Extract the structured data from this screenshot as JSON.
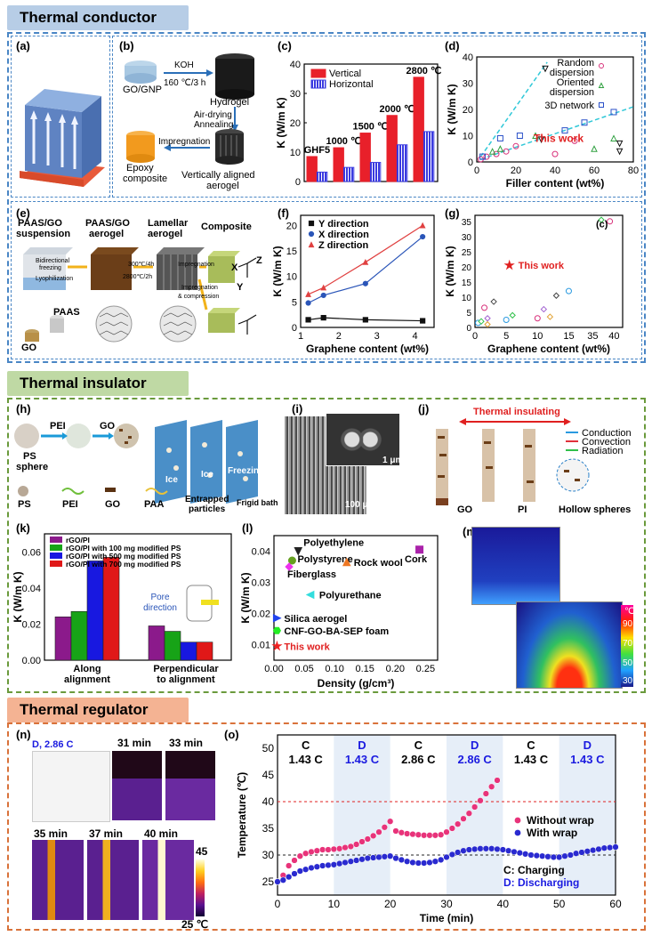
{
  "sections": {
    "conductor": {
      "title": "Thermal conductor",
      "color": "#b7cde6",
      "border": "#4a86c5"
    },
    "insulator": {
      "title": "Thermal insulator",
      "color": "#bfd9a4",
      "border": "#6a9a3c"
    },
    "regulator": {
      "title": "Thermal regulator",
      "color": "#f4b393",
      "border": "#d9723a"
    }
  },
  "panel_labels": {
    "a": "(a)",
    "b": "(b)",
    "c": "(c)",
    "d": "(d)",
    "e": "(e)",
    "f": "(f)",
    "g": "(g)",
    "h": "(h)",
    "i": "(i)",
    "j": "(j)",
    "k": "(k)",
    "l": "(l)",
    "m": "(m)",
    "n": "(n)",
    "o": "(o)"
  },
  "b": {
    "gognp": "GO/GNP",
    "koh": "KOH",
    "temp": "160 ℃/3 h",
    "hydrogel": "Hydrogel",
    "airdry": "Air-drying",
    "anneal": "Annealing",
    "impreg": "Impregnation",
    "epoxy1": "Epoxy",
    "epoxy2": "composite",
    "vert": "Vertically aligned",
    "aerogel": "aerogel"
  },
  "e": {
    "s1a": "PAAS/GO",
    "s1b": "suspension",
    "s2a": "PAAS/GO",
    "s2b": "aerogel",
    "s3a": "Lamellar",
    "s3b": "aerogel",
    "s4": "Composite",
    "bidir": "Bidirectional",
    "freezing": "freezing",
    "lyoph": "Lyophilization",
    "t1": "300℃/4h",
    "t2": "2800℃/2h",
    "imp": "Impregnation",
    "imp2": "Impregnation",
    "comp": "& compression",
    "go": "GO",
    "paas": "PAAS",
    "x": "X",
    "y": "Y",
    "z": "Z"
  },
  "h": {
    "peil": "PEI",
    "gol": "GO",
    "ps": "PS",
    "sphere": "sphere",
    "leg_ps": "PS",
    "leg_pei": "PEI",
    "leg_go": "GO",
    "leg_paa": "PAA",
    "ice1": "Ice",
    "ice2": "Ice",
    "freezing": "Freezing",
    "frigid": "Frigid bath",
    "entrapped1": "Entrapped",
    "entrapped2": "particles"
  },
  "i": {
    "scale1": "1 μm",
    "scale2": "100 μm"
  },
  "j": {
    "title": "Thermal insulating",
    "cond": "Conduction",
    "conv": "Convection",
    "rad": "Radiation",
    "go": "GO",
    "pi": "PI",
    "hollow": "Hollow spheres"
  },
  "m": {
    "unit": "℃",
    "ticks": [
      "90",
      "70",
      "50",
      "30"
    ]
  },
  "n": {
    "dlabel": "D, 2.86 C",
    "t31": "31 min",
    "t33": "33 min",
    "t35": "35 min",
    "t37": "37 min",
    "t40": "40 min",
    "cmax": "45",
    "cmin": "25 ℃"
  },
  "chart_data": [
    {
      "id": "c",
      "type": "bar",
      "categories": [
        "GHF5",
        "1000 ℃",
        "1500 ℃",
        "2000 ℃",
        "2800 ℃"
      ],
      "ylabel": "K (W/m K)",
      "ylim": [
        0,
        40
      ],
      "yticks": [
        0,
        10,
        20,
        30,
        40
      ],
      "series": [
        {
          "name": "Vertical",
          "color": "#e8202a",
          "values": [
            8.5,
            11.5,
            16.5,
            22.5,
            35.5
          ]
        },
        {
          "name": "Horizontal",
          "color": "#3a3ae0",
          "values": [
            3.2,
            4.8,
            6.5,
            12.5,
            17
          ]
        }
      ]
    },
    {
      "id": "d",
      "type": "scatter",
      "xlabel": "Filler content (wt%)",
      "ylabel": "K (W/m K)",
      "xlim": [
        0,
        80
      ],
      "ylim": [
        0,
        40
      ],
      "xticks": [
        0,
        20,
        40,
        60,
        80
      ],
      "yticks": [
        0,
        10,
        20,
        30,
        40
      ],
      "legend": [
        "Random dispersion",
        "Oriented dispersion",
        "3D network"
      ],
      "this_work_label": "This work",
      "series": [
        {
          "name": "Random dispersion",
          "points": [
            [
              2,
              1
            ],
            [
              5,
              2
            ],
            [
              10,
              3
            ],
            [
              15,
              4
            ],
            [
              20,
              6
            ],
            [
              40,
              3
            ],
            [
              50,
              8
            ]
          ]
        },
        {
          "name": "Oriented dispersion",
          "points": [
            [
              8,
              4
            ],
            [
              12,
              5
            ],
            [
              30,
              10
            ],
            [
              60,
              5
            ],
            [
              70,
              9
            ]
          ]
        },
        {
          "name": "3D network",
          "points": [
            [
              3,
              2
            ],
            [
              12,
              9
            ],
            [
              22,
              10
            ],
            [
              45,
              12
            ],
            [
              55,
              15
            ],
            [
              70,
              19
            ]
          ]
        },
        {
          "name": "This work",
          "points": [
            [
              35,
              35.5
            ],
            [
              33,
              8.5
            ],
            [
              73,
              7
            ],
            [
              73,
              4
            ]
          ]
        }
      ]
    },
    {
      "id": "f",
      "type": "line",
      "xlabel": "Graphene content (wt%)",
      "ylabel": "K (W/m K)",
      "xlim": [
        1,
        4.5
      ],
      "ylim": [
        0,
        22
      ],
      "xticks": [
        1,
        2,
        3,
        4
      ],
      "yticks": [
        0,
        5,
        10,
        15,
        20
      ],
      "series": [
        {
          "name": "Y direction",
          "color": "#111111",
          "x": [
            1.2,
            1.6,
            2.7,
            4.2
          ],
          "y": [
            1.5,
            1.9,
            1.5,
            1.3
          ]
        },
        {
          "name": "X direction",
          "color": "#2a55b8",
          "x": [
            1.2,
            1.6,
            2.7,
            4.2
          ],
          "y": [
            4.8,
            6.3,
            8.6,
            17.8
          ]
        },
        {
          "name": "Z direction",
          "color": "#e04040",
          "x": [
            1.2,
            1.6,
            2.7,
            4.2
          ],
          "y": [
            6.5,
            7.8,
            12.8,
            20
          ]
        }
      ]
    },
    {
      "id": "g",
      "type": "scatter",
      "xlabel": "Graphene content (wt%)",
      "ylabel": "K (W/m K)",
      "yticks": [
        "0",
        "5",
        "10",
        "15",
        "20",
        "25",
        "30",
        "35"
      ],
      "xticks": [
        "0",
        "5",
        "10",
        "15",
        "35",
        "40"
      ],
      "legend": [
        "This work"
      ],
      "label_c": "(c)",
      "points": [
        [
          0.5,
          1.5
        ],
        [
          1,
          2
        ],
        [
          1.5,
          6.5
        ],
        [
          2,
          3
        ],
        [
          2,
          1
        ],
        [
          3,
          8.5
        ],
        [
          5,
          2.5
        ],
        [
          6,
          4
        ],
        [
          10,
          3
        ],
        [
          11,
          6
        ],
        [
          12,
          3.5
        ],
        [
          13,
          10.5
        ],
        [
          15,
          12
        ],
        [
          37,
          35.5
        ],
        [
          39,
          35
        ]
      ],
      "this_work": [
        [
          5.5,
          20.5
        ]
      ]
    },
    {
      "id": "k",
      "type": "bar",
      "categories": [
        "Along alignment",
        "Perpendicular to alignment"
      ],
      "ylabel": "K (W/m K)",
      "ylim": [
        0,
        0.07
      ],
      "yticks": [
        "0.00",
        "0.02",
        "0.04",
        "0.06"
      ],
      "annotation": "Pore direction",
      "series": [
        {
          "name": "rGO/PI",
          "color": "#8b1a8b",
          "values": [
            0.024,
            0.019
          ]
        },
        {
          "name": "rGO/PI with 100 mg modified PS",
          "color": "#17a317",
          "values": [
            0.027,
            0.016
          ]
        },
        {
          "name": "rGO/PI with 500 mg modified PS",
          "color": "#1818e0",
          "values": [
            0.055,
            0.01
          ]
        },
        {
          "name": "rGO/PI with 700 mg modified PS",
          "color": "#e01818",
          "values": [
            0.057,
            0.01
          ]
        }
      ]
    },
    {
      "id": "l",
      "type": "scatter",
      "xlabel": "Density (g/cm³)",
      "ylabel": "K (W/m K)",
      "xlim": [
        0,
        0.27
      ],
      "ylim": [
        0.005,
        0.045
      ],
      "xticks": [
        "0.00",
        "0.05",
        "0.10",
        "0.15",
        "0.20",
        "0.25"
      ],
      "yticks": [
        "0.01",
        "0.02",
        "0.03",
        "0.04"
      ],
      "points": [
        {
          "name": "Polyethylene",
          "x": 0.04,
          "y": 0.04,
          "color": "#222222",
          "marker": "triangle-down"
        },
        {
          "name": "Polystyrene",
          "x": 0.03,
          "y": 0.037,
          "color": "#66a020",
          "marker": "circle"
        },
        {
          "name": "Fiberglass",
          "x": 0.025,
          "y": 0.035,
          "color": "#ee33ee",
          "marker": "diamond"
        },
        {
          "name": "Rock wool",
          "x": 0.12,
          "y": 0.0365,
          "color": "#ee7722",
          "marker": "triangle-up"
        },
        {
          "name": "Cork",
          "x": 0.24,
          "y": 0.0405,
          "color": "#aa22aa",
          "marker": "square"
        },
        {
          "name": "Polyurethane",
          "x": 0.06,
          "y": 0.026,
          "color": "#33dddd",
          "marker": "triangle-left"
        },
        {
          "name": "Silica aerogel",
          "x": 0.005,
          "y": 0.0185,
          "color": "#2244ee",
          "marker": "triangle-right"
        },
        {
          "name": "CNF-GO-BA-SEP foam",
          "x": 0.005,
          "y": 0.0145,
          "color": "#22ee22",
          "marker": "hexagon"
        },
        {
          "name": "This work",
          "x": 0.005,
          "y": 0.0095,
          "color": "#ee2222",
          "marker": "star"
        }
      ]
    },
    {
      "id": "o",
      "type": "scatter",
      "xlabel": "Time (min)",
      "ylabel": "Temperature (℃)",
      "xlim": [
        0,
        60
      ],
      "ylim": [
        22.5,
        52.5
      ],
      "xticks": [
        0,
        10,
        20,
        30,
        40,
        50,
        60
      ],
      "yticks": [
        25,
        30,
        35,
        40,
        45,
        50
      ],
      "phases": [
        {
          "mode": "C",
          "rate": "1.43 C",
          "start": 0,
          "end": 10,
          "shade": false,
          "color": "#000000"
        },
        {
          "mode": "D",
          "rate": "1.43 C",
          "start": 10,
          "end": 20,
          "shade": true,
          "color": "#1a1ae0"
        },
        {
          "mode": "C",
          "rate": "2.86 C",
          "start": 20,
          "end": 30,
          "shade": false,
          "color": "#000000"
        },
        {
          "mode": "D",
          "rate": "2.86 C",
          "start": 30,
          "end": 40,
          "shade": true,
          "color": "#1a1ae0"
        },
        {
          "mode": "C",
          "rate": "1.43 C",
          "start": 40,
          "end": 50,
          "shade": false,
          "color": "#000000"
        },
        {
          "mode": "D",
          "rate": "1.43 C",
          "start": 50,
          "end": 60,
          "shade": true,
          "color": "#1a1ae0"
        }
      ],
      "reference_lines": [
        40,
        30
      ],
      "legend_note": [
        "C: Charging",
        "D: Discharging"
      ],
      "series": [
        {
          "name": "Without wrap",
          "color": "#e8337a",
          "x": [
            0,
            1,
            2,
            3,
            4,
            5,
            6,
            7,
            8,
            9,
            10,
            11,
            12,
            13,
            14,
            15,
            16,
            17,
            18,
            19,
            20,
            21,
            22,
            23,
            24,
            25,
            26,
            27,
            28,
            29,
            30,
            31,
            32,
            33,
            34,
            35,
            36,
            37,
            38,
            39
          ],
          "y": [
            25,
            26.2,
            28,
            29,
            29.8,
            30.3,
            30.6,
            30.8,
            31,
            31,
            31.1,
            31.2,
            31.4,
            31.6,
            32,
            32.5,
            33,
            33.6,
            34.3,
            35.2,
            36.3,
            34.5,
            34.2,
            34,
            33.9,
            33.8,
            33.7,
            33.7,
            33.7,
            33.8,
            34.3,
            35,
            35.8,
            36.8,
            37.8,
            39,
            40.2,
            41.5,
            42.8,
            44
          ]
        },
        {
          "name": "With wrap",
          "color": "#2a2ad0",
          "x": [
            0,
            1,
            2,
            3,
            4,
            5,
            6,
            7,
            8,
            9,
            10,
            11,
            12,
            13,
            14,
            15,
            16,
            17,
            18,
            19,
            20,
            21,
            22,
            23,
            24,
            25,
            26,
            27,
            28,
            29,
            30,
            31,
            32,
            33,
            34,
            35,
            36,
            37,
            38,
            39,
            40,
            41,
            42,
            43,
            44,
            45,
            46,
            47,
            48,
            49,
            50,
            51,
            52,
            53,
            54,
            55,
            56,
            57,
            58,
            59,
            60
          ],
          "y": [
            25,
            25.3,
            25.9,
            26.5,
            27,
            27.3,
            27.6,
            27.8,
            28,
            28.1,
            28.2,
            28.4,
            28.6,
            28.8,
            29,
            29.2,
            29.4,
            29.5,
            29.6,
            29.7,
            29.8,
            29.4,
            29.1,
            28.8,
            28.6,
            28.5,
            28.5,
            28.6,
            28.8,
            29.1,
            29.6,
            30.1,
            30.5,
            30.8,
            31,
            31.1,
            31.2,
            31.2,
            31.2,
            31.1,
            31,
            30.8,
            30.6,
            30.4,
            30.2,
            30,
            29.9,
            29.8,
            29.7,
            29.6,
            29.6,
            29.8,
            30,
            30.3,
            30.5,
            30.7,
            30.9,
            31.1,
            31.3,
            31.4,
            31.5
          ]
        }
      ]
    }
  ]
}
